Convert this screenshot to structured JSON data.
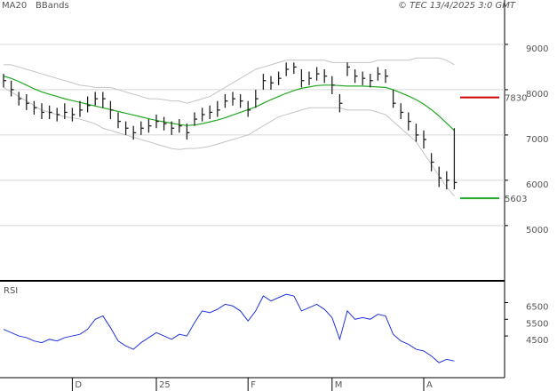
{
  "chart_data": [
    {
      "type": "ohlc",
      "legend": [
        "MA20",
        "BBands"
      ],
      "source": "© TEC 13/4/2025 3:0 GMT",
      "categories": [
        null,
        null,
        null,
        null,
        null,
        null,
        null,
        null,
        null,
        "D",
        null,
        null,
        null,
        null,
        null,
        null,
        null,
        null,
        null,
        null,
        "25",
        null,
        null,
        null,
        null,
        null,
        null,
        null,
        null,
        null,
        null,
        null,
        "F",
        null,
        null,
        null,
        null,
        null,
        null,
        null,
        null,
        null,
        null,
        "M",
        null,
        null,
        null,
        null,
        null,
        null,
        null,
        null,
        null,
        null,
        null,
        "A",
        null,
        null,
        null,
        null
      ],
      "high": [
        8350,
        8200,
        7950,
        7900,
        7750,
        7700,
        7650,
        7600,
        7700,
        7600,
        7750,
        7850,
        7950,
        7950,
        7750,
        7500,
        7300,
        7200,
        7300,
        7350,
        7450,
        7400,
        7300,
        7350,
        7250,
        7500,
        7600,
        7650,
        7750,
        7900,
        7950,
        7900,
        7750,
        8000,
        8350,
        8300,
        8400,
        8600,
        8600,
        8450,
        8400,
        8500,
        8450,
        8300,
        7900,
        8600,
        8450,
        8400,
        8350,
        8500,
        8450,
        8000,
        7700,
        7500,
        7250,
        7100,
        6600,
        6300,
        6200,
        7150
      ],
      "low": [
        8050,
        7850,
        7650,
        7550,
        7450,
        7350,
        7350,
        7300,
        7350,
        7300,
        7400,
        7500,
        7650,
        7600,
        7350,
        7150,
        7000,
        6900,
        7000,
        7050,
        7150,
        7100,
        7000,
        7050,
        6900,
        7200,
        7300,
        7350,
        7400,
        7600,
        7650,
        7600,
        7400,
        7600,
        8000,
        8000,
        8100,
        8300,
        8350,
        8050,
        8100,
        8200,
        8150,
        7900,
        7500,
        8300,
        8150,
        8100,
        8050,
        8200,
        8150,
        7600,
        7350,
        7100,
        6850,
        6700,
        6200,
        5850,
        5800,
        5800
      ],
      "close": [
        8200,
        8000,
        7800,
        7700,
        7600,
        7500,
        7500,
        7450,
        7500,
        7450,
        7550,
        7650,
        7800,
        7800,
        7550,
        7300,
        7150,
        7050,
        7150,
        7200,
        7300,
        7250,
        7150,
        7200,
        7050,
        7350,
        7450,
        7500,
        7550,
        7750,
        7800,
        7750,
        7550,
        7800,
        8200,
        8150,
        8250,
        8450,
        8500,
        8200,
        8250,
        8350,
        8300,
        8100,
        7700,
        8500,
        8300,
        8250,
        8200,
        8350,
        8300,
        7700,
        7500,
        7300,
        7000,
        6900,
        6400,
        6050,
        6000,
        5950
      ],
      "bar_color": "#222222",
      "series": [
        {
          "name": "MA20",
          "color": "#22a822",
          "values": [
            8300,
            8250,
            8180,
            8100,
            8020,
            7950,
            7900,
            7850,
            7800,
            7760,
            7720,
            7680,
            7640,
            7600,
            7560,
            7520,
            7480,
            7440,
            7400,
            7360,
            7320,
            7290,
            7260,
            7230,
            7210,
            7220,
            7250,
            7290,
            7330,
            7380,
            7440,
            7500,
            7560,
            7620,
            7700,
            7780,
            7850,
            7920,
            7980,
            8030,
            8060,
            8090,
            8100,
            8100,
            8090,
            8080,
            8080,
            8080,
            8070,
            8060,
            8050,
            8000,
            7930,
            7860,
            7780,
            7680,
            7560,
            7420,
            7260,
            7100
          ]
        },
        {
          "name": "BBands",
          "color": "#c4c4c4",
          "upper": [
            8550,
            8550,
            8500,
            8450,
            8400,
            8350,
            8300,
            8250,
            8200,
            8150,
            8100,
            8080,
            8050,
            8050,
            8050,
            8000,
            7950,
            7900,
            7850,
            7800,
            7800,
            7780,
            7750,
            7750,
            7700,
            7750,
            7800,
            7850,
            7950,
            8050,
            8150,
            8250,
            8350,
            8450,
            8500,
            8550,
            8600,
            8650,
            8650,
            8650,
            8650,
            8650,
            8650,
            8600,
            8600,
            8600,
            8600,
            8600,
            8600,
            8650,
            8650,
            8650,
            8650,
            8650,
            8700,
            8700,
            8700,
            8700,
            8650,
            8550
          ],
          "lower": [
            8050,
            7950,
            7850,
            7750,
            7650,
            7550,
            7500,
            7450,
            7400,
            7380,
            7350,
            7300,
            7250,
            7150,
            7100,
            7050,
            7000,
            6950,
            6900,
            6850,
            6800,
            6750,
            6700,
            6680,
            6700,
            6700,
            6720,
            6750,
            6800,
            6850,
            6900,
            6950,
            7000,
            7100,
            7200,
            7300,
            7400,
            7450,
            7500,
            7550,
            7600,
            7600,
            7600,
            7600,
            7600,
            7550,
            7550,
            7550,
            7550,
            7500,
            7450,
            7300,
            7150,
            7000,
            6850,
            6600,
            6350,
            6100,
            5850,
            5650
          ]
        }
      ],
      "levels": [
        {
          "value": 7830,
          "color": "#cc0000"
        },
        {
          "value": 5603,
          "color": "#22a822"
        }
      ],
      "ylim": [
        3800,
        9980
      ],
      "yticks": [
        5000,
        6000,
        7000,
        8000,
        9000
      ],
      "grid": true
    },
    {
      "type": "line",
      "title": "RSI",
      "color": "#2233dd",
      "values": [
        49,
        47,
        45,
        44,
        42,
        41,
        43,
        42,
        44,
        45,
        46,
        49,
        55,
        57,
        50,
        42,
        39,
        37,
        41,
        44,
        47,
        45,
        43,
        46,
        45,
        53,
        60,
        59,
        61,
        64,
        63,
        60,
        54,
        60,
        69,
        66,
        68,
        70,
        69,
        60,
        62,
        64,
        61,
        56,
        43,
        60,
        55,
        56,
        55,
        58,
        57,
        46,
        42,
        40,
        37,
        36,
        33,
        29,
        31,
        30
      ],
      "ylim": [
        20,
        77
      ],
      "yticks": [
        {
          "value": 45,
          "label": "4500"
        },
        {
          "value": 55,
          "label": "5500"
        },
        {
          "value": 65,
          "label": "6500"
        }
      ]
    }
  ]
}
